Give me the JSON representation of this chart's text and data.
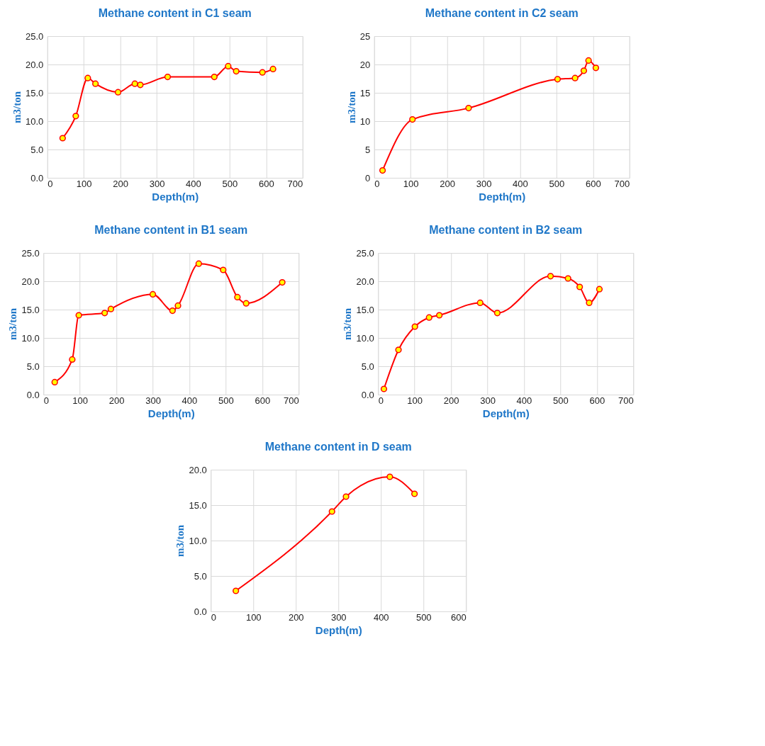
{
  "chart_data": [
    {
      "type": "line",
      "title": "Methane content in C1 seam",
      "xlabel": "Depth(m)",
      "ylabel": "m3/ton",
      "grid": true,
      "marker": "circle",
      "line_style": "solid",
      "xlim": [
        0,
        700
      ],
      "xticks": [
        0,
        100,
        200,
        300,
        400,
        500,
        600,
        700
      ],
      "ylim": [
        0,
        25
      ],
      "yticks": [
        {
          "value": 0,
          "label": "0.0"
        },
        {
          "value": 5,
          "label": "5.0"
        },
        {
          "value": 10,
          "label": "10.0"
        },
        {
          "value": 15,
          "label": "15.0"
        },
        {
          "value": 20,
          "label": "20.0"
        },
        {
          "value": 25,
          "label": "25.0"
        }
      ],
      "series": [
        {
          "color": "#ff0000",
          "x": [
            42,
            78,
            111,
            132,
            194,
            240,
            255,
            330,
            458,
            496,
            518,
            590,
            619
          ],
          "values": [
            7.0,
            10.9,
            17.6,
            16.6,
            15.1,
            16.6,
            16.4,
            17.8,
            17.8,
            19.7,
            18.8,
            18.6,
            19.2
          ]
        }
      ]
    },
    {
      "type": "line",
      "title": "Methane content in C2 seam",
      "xlabel": "Depth(m)",
      "ylabel": "m3/ton",
      "grid": true,
      "marker": "circle",
      "line_style": "solid",
      "xlim": [
        0,
        700
      ],
      "xticks": [
        0,
        100,
        200,
        300,
        400,
        500,
        600,
        700
      ],
      "ylim": [
        0,
        25
      ],
      "yticks": [
        0,
        5,
        10,
        15,
        20,
        25
      ],
      "series": [
        {
          "color": "#ff0000",
          "x": [
            23,
            105,
            259,
            503,
            551,
            575,
            588,
            608
          ],
          "values": [
            1.3,
            10.3,
            12.3,
            17.4,
            17.6,
            18.9,
            20.7,
            19.4
          ]
        }
      ]
    },
    {
      "type": "line",
      "title": "Methane content in B1 seam",
      "xlabel": "Depth(m)",
      "ylabel": "m3/ton",
      "grid": true,
      "marker": "circle",
      "line_style": "solid",
      "xlim": [
        0,
        700
      ],
      "xticks": [
        0,
        100,
        200,
        300,
        400,
        500,
        600,
        700
      ],
      "ylim": [
        0,
        25
      ],
      "yticks": [
        {
          "value": 0,
          "label": "0.0"
        },
        {
          "value": 5,
          "label": "5.0"
        },
        {
          "value": 10,
          "label": "10.0"
        },
        {
          "value": 15,
          "label": "15.0"
        },
        {
          "value": 20,
          "label": "20.0"
        },
        {
          "value": 25,
          "label": "25.0"
        }
      ],
      "series": [
        {
          "color": "#ff0000",
          "x": [
            31,
            79,
            97,
            168,
            185,
            300,
            354,
            369,
            426,
            493,
            532,
            556,
            655
          ],
          "values": [
            2.2,
            6.2,
            14.0,
            14.4,
            15.1,
            17.7,
            14.8,
            15.7,
            23.1,
            22.0,
            17.2,
            16.1,
            19.8
          ]
        }
      ]
    },
    {
      "type": "line",
      "title": "Methane content in B2 seam",
      "xlabel": "Depth(m)",
      "ylabel": "m3/ton",
      "grid": true,
      "marker": "circle",
      "line_style": "solid",
      "xlim": [
        0,
        700
      ],
      "xticks": [
        0,
        100,
        200,
        300,
        400,
        500,
        600,
        700
      ],
      "ylim": [
        0,
        25
      ],
      "yticks": [
        {
          "value": 0,
          "label": "0.0"
        },
        {
          "value": 5,
          "label": "5.0"
        },
        {
          "value": 10,
          "label": "10.0"
        },
        {
          "value": 15,
          "label": "15.0"
        },
        {
          "value": 20,
          "label": "20.0"
        },
        {
          "value": 25,
          "label": "25.0"
        }
      ],
      "series": [
        {
          "color": "#ff0000",
          "x": [
            16,
            56,
            101,
            140,
            168,
            280,
            327,
            473,
            521,
            553,
            579,
            607
          ],
          "values": [
            1.0,
            7.9,
            12.0,
            13.6,
            14.0,
            16.2,
            14.4,
            20.9,
            20.5,
            19.0,
            16.2,
            18.6
          ]
        }
      ]
    },
    {
      "type": "line",
      "title": "Methane content in D seam",
      "xlabel": "Depth(m)",
      "ylabel": "m3/ton",
      "grid": true,
      "marker": "circle",
      "line_style": "solid",
      "xlim": [
        0,
        600
      ],
      "xticks": [
        0,
        100,
        200,
        300,
        400,
        500,
        600
      ],
      "ylim": [
        0,
        20
      ],
      "yticks": [
        {
          "value": 0,
          "label": "0.0"
        },
        {
          "value": 5,
          "label": "5.0"
        },
        {
          "value": 10,
          "label": "10.0"
        },
        {
          "value": 15,
          "label": "15.0"
        },
        {
          "value": 20,
          "label": "20.0"
        }
      ],
      "series": [
        {
          "color": "#ff0000",
          "x": [
            59,
            285,
            318,
            421,
            479
          ],
          "values": [
            2.9,
            14.1,
            16.2,
            19.0,
            16.6
          ]
        }
      ]
    }
  ]
}
